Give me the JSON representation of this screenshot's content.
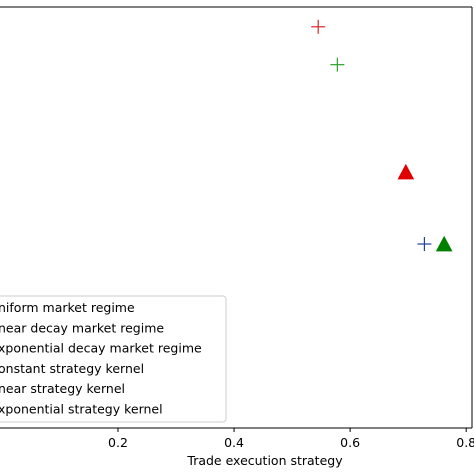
{
  "chart_data": {
    "type": "scatter",
    "title": "",
    "xlabel": "Trade execution strategy",
    "ylabel": "",
    "xlim": [
      -0.005,
      0.81
    ],
    "ylim": [
      0.0,
      1.0
    ],
    "x_ticks": [
      0.2,
      0.4,
      0.6,
      0.8
    ],
    "x_tick_labels": [
      "0.2",
      "0.4",
      "0.6",
      "0.8"
    ],
    "grid": false,
    "legend_position": "lower-left",
    "legend": [
      {
        "label": "niform market regime"
      },
      {
        "label": "near decay market regime"
      },
      {
        "label": "xponential decay market regime"
      },
      {
        "label": "onstant strategy kernel"
      },
      {
        "label": "near strategy kernel"
      },
      {
        "label": "xponential strategy kernel"
      }
    ],
    "points": [
      {
        "x": 0.545,
        "y": 0.953,
        "marker": "plus",
        "color": "#d62728"
      },
      {
        "x": 0.578,
        "y": 0.863,
        "marker": "plus",
        "color": "#2ca02c"
      },
      {
        "x": 0.696,
        "y": 0.606,
        "marker": "triangle",
        "color": "#e00000"
      },
      {
        "x": 0.728,
        "y": 0.437,
        "marker": "plus",
        "color": "#1f3fa0"
      },
      {
        "x": 0.762,
        "y": 0.435,
        "marker": "triangle",
        "color": "#008000"
      }
    ]
  }
}
